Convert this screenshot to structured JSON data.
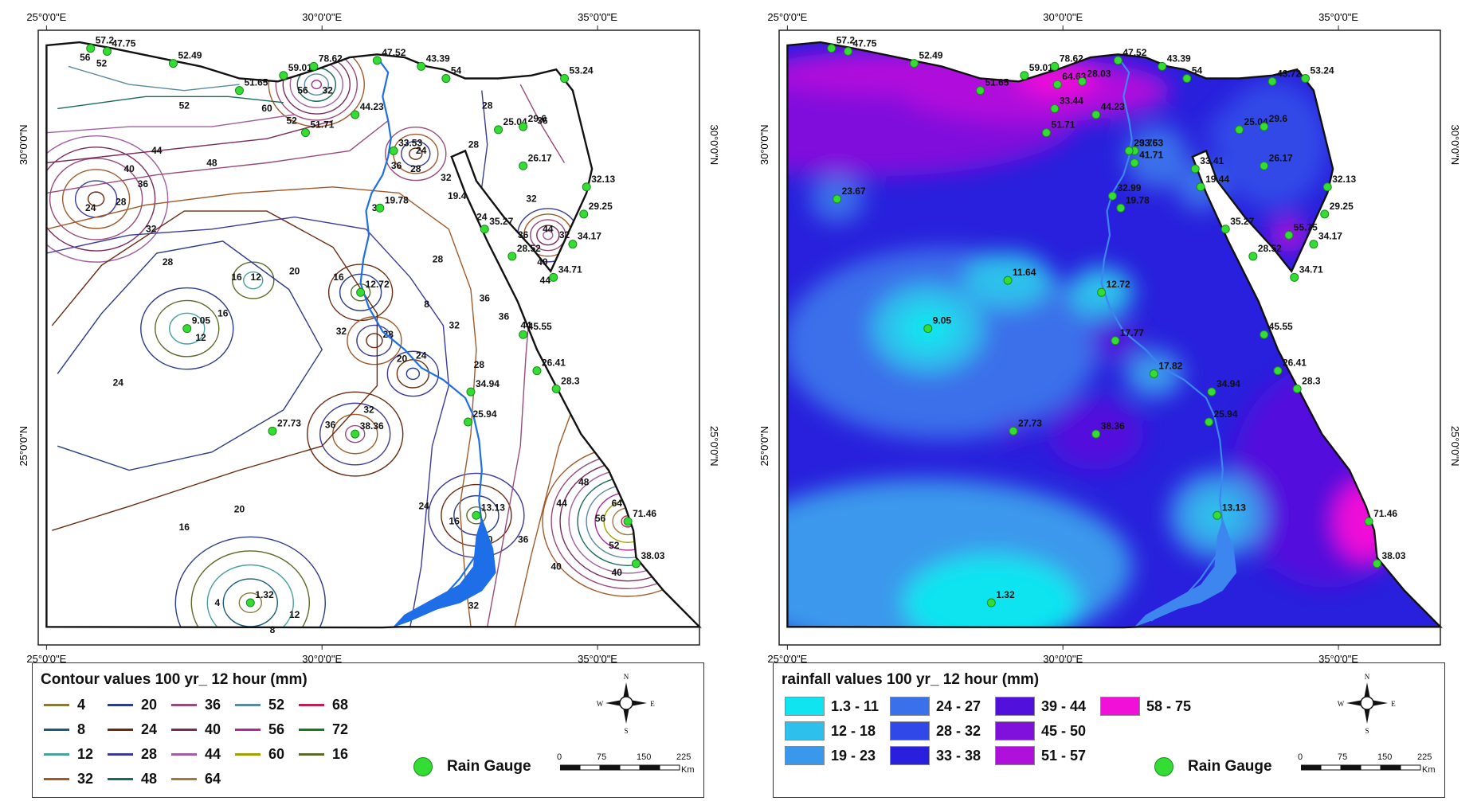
{
  "axes": {
    "top_labels": [
      "25°0'0\"E",
      "30°0'0\"E",
      "35°0'0\"E"
    ],
    "bottom_labels": [
      "25°0'0\"E",
      "30°0'0\"E",
      "35°0'0\"E"
    ],
    "side_labels": [
      "30°0'0\"N",
      "25°0'0\"N"
    ]
  },
  "gauges": [
    {
      "v": "57.2",
      "lon": 25.8,
      "lat": 31.6
    },
    {
      "v": "47.75",
      "lon": 26.1,
      "lat": 31.55
    },
    {
      "v": "52.49",
      "lon": 27.3,
      "lat": 31.35
    },
    {
      "v": "51.65",
      "lon": 28.5,
      "lat": 30.9
    },
    {
      "v": "59.01",
      "lon": 29.3,
      "lat": 31.15
    },
    {
      "v": "78.62",
      "lon": 29.85,
      "lat": 31.3
    },
    {
      "v": "47.52",
      "lon": 31.0,
      "lat": 31.4
    },
    {
      "v": "43.39",
      "lon": 31.8,
      "lat": 31.3
    },
    {
      "v": "54",
      "lon": 32.25,
      "lat": 31.1
    },
    {
      "v": "44.23",
      "lon": 30.6,
      "lat": 30.5
    },
    {
      "v": "51.71",
      "lon": 29.7,
      "lat": 30.2
    },
    {
      "v": "33.53",
      "lon": 31.3,
      "lat": 29.9
    },
    {
      "v": "53.24",
      "lon": 34.4,
      "lat": 31.1
    },
    {
      "v": "25.04",
      "lon": 33.2,
      "lat": 30.25
    },
    {
      "v": "29.6",
      "lon": 33.65,
      "lat": 30.3
    },
    {
      "v": "26.17",
      "lon": 33.65,
      "lat": 29.65
    },
    {
      "v": "32.13",
      "lon": 34.8,
      "lat": 29.3
    },
    {
      "v": "29.25",
      "lon": 34.75,
      "lat": 28.85
    },
    {
      "v": "34.17",
      "lon": 34.55,
      "lat": 28.35
    },
    {
      "v": "34.71",
      "lon": 34.2,
      "lat": 27.8
    },
    {
      "v": "35.27",
      "lon": 32.95,
      "lat": 28.6
    },
    {
      "v": "28.52",
      "lon": 33.45,
      "lat": 28.15
    },
    {
      "v": "19.78",
      "lon": 31.05,
      "lat": 28.95
    },
    {
      "v": "12.72",
      "lon": 30.7,
      "lat": 27.55
    },
    {
      "v": "9.05",
      "lon": 27.55,
      "lat": 26.95
    },
    {
      "v": "45.55",
      "lon": 33.65,
      "lat": 26.85
    },
    {
      "v": "26.41",
      "lon": 33.9,
      "lat": 26.25
    },
    {
      "v": "28.3",
      "lon": 34.25,
      "lat": 25.95
    },
    {
      "v": "34.94",
      "lon": 32.7,
      "lat": 25.9
    },
    {
      "v": "25.94",
      "lon": 32.65,
      "lat": 25.4
    },
    {
      "v": "27.73",
      "lon": 29.1,
      "lat": 25.25
    },
    {
      "v": "38.36",
      "lon": 30.6,
      "lat": 25.2
    },
    {
      "v": "13.13",
      "lon": 32.8,
      "lat": 23.85
    },
    {
      "v": "71.46",
      "lon": 35.55,
      "lat": 23.75
    },
    {
      "v": "38.03",
      "lon": 35.7,
      "lat": 23.05
    },
    {
      "v": "1.32",
      "lon": 28.7,
      "lat": 22.4
    }
  ],
  "left_map": {
    "legend_title": "Contour values 100 yr_ 12 hour (mm)",
    "contour_legend": [
      {
        "v": "4",
        "color": "#8a7a3a"
      },
      {
        "v": "20",
        "color": "#2a3c8c"
      },
      {
        "v": "36",
        "color": "#9a4a7a"
      },
      {
        "v": "52",
        "color": "#5a8aa0"
      },
      {
        "v": "68",
        "color": "#c02050"
      },
      {
        "v": "8",
        "color": "#1a5a7a"
      },
      {
        "v": "24",
        "color": "#6a2a10"
      },
      {
        "v": "40",
        "color": "#7a2a5a"
      },
      {
        "v": "56",
        "color": "#aa2a9a"
      },
      {
        "v": "72",
        "color": "#1a7a1a"
      },
      {
        "v": "12",
        "color": "#4aa0a0"
      },
      {
        "v": "28",
        "color": "#3a3a9a"
      },
      {
        "v": "44",
        "color": "#a060a0"
      },
      {
        "v": "60",
        "color": "#a0a000"
      },
      {
        "v": "16",
        "color": "#5a6a2a"
      },
      {
        "v": "32",
        "color": "#a05a2a"
      },
      {
        "v": "48",
        "color": "#1a6a5a"
      },
      {
        "v": "64",
        "color": "#a07a3a"
      }
    ],
    "contour_labels": [
      {
        "t": "56",
        "lon": 25.7,
        "lat": 31.4
      },
      {
        "t": "52",
        "lon": 26.0,
        "lat": 31.3
      },
      {
        "t": "52",
        "lon": 27.5,
        "lat": 30.6
      },
      {
        "t": "60",
        "lon": 29.0,
        "lat": 30.55
      },
      {
        "t": "56",
        "lon": 29.65,
        "lat": 30.85
      },
      {
        "t": "52",
        "lon": 29.45,
        "lat": 30.35
      },
      {
        "t": "32",
        "lon": 30.1,
        "lat": 30.85
      },
      {
        "t": "44",
        "lon": 27.0,
        "lat": 29.85
      },
      {
        "t": "48",
        "lon": 28.0,
        "lat": 29.65
      },
      {
        "t": "40",
        "lon": 26.5,
        "lat": 29.55
      },
      {
        "t": "36",
        "lon": 26.75,
        "lat": 29.3
      },
      {
        "t": "28",
        "lon": 26.35,
        "lat": 29.0
      },
      {
        "t": "24",
        "lon": 25.8,
        "lat": 28.9
      },
      {
        "t": "32",
        "lon": 26.9,
        "lat": 28.55
      },
      {
        "t": "28",
        "lon": 27.2,
        "lat": 28.0
      },
      {
        "t": "16",
        "lon": 28.45,
        "lat": 27.75
      },
      {
        "t": "12",
        "lon": 28.8,
        "lat": 27.75
      },
      {
        "t": "16",
        "lon": 28.2,
        "lat": 27.15
      },
      {
        "t": "12",
        "lon": 27.8,
        "lat": 26.75
      },
      {
        "t": "20",
        "lon": 29.5,
        "lat": 27.85
      },
      {
        "t": "16",
        "lon": 30.3,
        "lat": 27.75
      },
      {
        "t": "32",
        "lon": 30.35,
        "lat": 26.85
      },
      {
        "t": "28",
        "lon": 31.2,
        "lat": 26.8
      },
      {
        "t": "20",
        "lon": 31.45,
        "lat": 26.4
      },
      {
        "t": "24",
        "lon": 31.8,
        "lat": 26.45
      },
      {
        "t": "36",
        "lon": 31.35,
        "lat": 29.6
      },
      {
        "t": "28",
        "lon": 31.7,
        "lat": 29.55
      },
      {
        "t": "24",
        "lon": 31.8,
        "lat": 29.85
      },
      {
        "t": "32",
        "lon": 32.25,
        "lat": 29.4
      },
      {
        "t": "32",
        "lon": 31.0,
        "lat": 28.9
      },
      {
        "t": "28",
        "lon": 32.1,
        "lat": 28.05
      },
      {
        "t": "24",
        "lon": 32.9,
        "lat": 28.75
      },
      {
        "t": "28",
        "lon": 32.75,
        "lat": 29.95
      },
      {
        "t": "28",
        "lon": 33.0,
        "lat": 30.6
      },
      {
        "t": "36",
        "lon": 34.0,
        "lat": 30.35
      },
      {
        "t": "32",
        "lon": 33.8,
        "lat": 29.05
      },
      {
        "t": "36",
        "lon": 33.65,
        "lat": 28.45
      },
      {
        "t": "44",
        "lon": 34.1,
        "lat": 28.55
      },
      {
        "t": "40",
        "lon": 34.0,
        "lat": 28.0
      },
      {
        "t": "44",
        "lon": 34.05,
        "lat": 27.7
      },
      {
        "t": "32",
        "lon": 34.4,
        "lat": 28.45
      },
      {
        "t": "36",
        "lon": 33.3,
        "lat": 27.1
      },
      {
        "t": "44",
        "lon": 33.7,
        "lat": 26.95
      },
      {
        "t": "36",
        "lon": 32.95,
        "lat": 27.4
      },
      {
        "t": "32",
        "lon": 32.4,
        "lat": 26.95
      },
      {
        "t": "28",
        "lon": 32.85,
        "lat": 26.3
      },
      {
        "t": "24",
        "lon": 26.3,
        "lat": 26.0
      },
      {
        "t": "20",
        "lon": 28.5,
        "lat": 23.9
      },
      {
        "t": "16",
        "lon": 27.5,
        "lat": 23.6
      },
      {
        "t": "4",
        "lon": 28.1,
        "lat": 22.35
      },
      {
        "t": "8",
        "lon": 29.1,
        "lat": 21.9
      },
      {
        "t": "12",
        "lon": 29.5,
        "lat": 22.15
      },
      {
        "t": "36",
        "lon": 30.15,
        "lat": 25.3
      },
      {
        "t": "32",
        "lon": 30.85,
        "lat": 25.55
      },
      {
        "t": "24",
        "lon": 31.85,
        "lat": 23.95
      },
      {
        "t": "16",
        "lon": 32.4,
        "lat": 23.7
      },
      {
        "t": "20",
        "lon": 33.0,
        "lat": 23.4
      },
      {
        "t": "36",
        "lon": 33.65,
        "lat": 23.4
      },
      {
        "t": "32",
        "lon": 32.75,
        "lat": 22.3
      },
      {
        "t": "44",
        "lon": 34.35,
        "lat": 24.0
      },
      {
        "t": "48",
        "lon": 34.75,
        "lat": 24.35
      },
      {
        "t": "56",
        "lon": 35.05,
        "lat": 23.75
      },
      {
        "t": "64",
        "lon": 35.35,
        "lat": 24.0
      },
      {
        "t": "52",
        "lon": 35.3,
        "lat": 23.3
      },
      {
        "t": "40",
        "lon": 34.25,
        "lat": 22.95
      },
      {
        "t": "40",
        "lon": 35.35,
        "lat": 22.85
      },
      {
        "t": "19.4",
        "lon": 32.45,
        "lat": 29.1
      },
      {
        "t": "8",
        "lon": 31.9,
        "lat": 27.3
      }
    ]
  },
  "right_map": {
    "legend_title": "rainfall values 100 yr_ 12 hour (mm)",
    "class_legend": [
      {
        "label": "1.3 - 11",
        "color": "#10e4f0"
      },
      {
        "label": "12 - 18",
        "color": "#2ec0ec"
      },
      {
        "label": "19 - 23",
        "color": "#3a98ec"
      },
      {
        "label": "24 - 27",
        "color": "#3a70ea"
      },
      {
        "label": "28 - 32",
        "color": "#3048e8"
      },
      {
        "label": "33 - 38",
        "color": "#2820dc"
      },
      {
        "label": "39 - 44",
        "color": "#5210dc"
      },
      {
        "label": "45 - 50",
        "color": "#8010dc"
      },
      {
        "label": "51 - 57",
        "color": "#b010dc"
      },
      {
        "label": "58 - 75",
        "color": "#f010d8"
      }
    ],
    "extra_gauges": [
      {
        "v": "23.67",
        "lon": 25.9,
        "lat": 29.1
      },
      {
        "v": "11.64",
        "lon": 29.0,
        "lat": 27.75
      },
      {
        "v": "17.77",
        "lon": 30.95,
        "lat": 26.75
      },
      {
        "v": "17.82",
        "lon": 31.65,
        "lat": 26.2
      },
      {
        "v": "64.63",
        "lon": 29.9,
        "lat": 31.0
      },
      {
        "v": "28.03",
        "lon": 30.35,
        "lat": 31.05
      },
      {
        "v": "33.44",
        "lon": 29.85,
        "lat": 30.6
      },
      {
        "v": "29.76",
        "lon": 31.2,
        "lat": 29.9
      },
      {
        "v": "41.71",
        "lon": 31.3,
        "lat": 29.7
      },
      {
        "v": "32.99",
        "lon": 30.9,
        "lat": 29.15
      },
      {
        "v": "33.41",
        "lon": 32.4,
        "lat": 29.6
      },
      {
        "v": "19.44",
        "lon": 32.5,
        "lat": 29.3
      },
      {
        "v": "43.72",
        "lon": 33.8,
        "lat": 31.05
      },
      {
        "v": "55.75",
        "lon": 34.1,
        "lat": 28.5
      }
    ]
  },
  "common": {
    "gauge_label": "Rain Gauge",
    "scale_ticks": [
      "0",
      "75",
      "150",
      "225"
    ],
    "scale_unit": "Km",
    "compass": {
      "n": "N",
      "s": "S",
      "e": "E",
      "w": "W"
    }
  }
}
